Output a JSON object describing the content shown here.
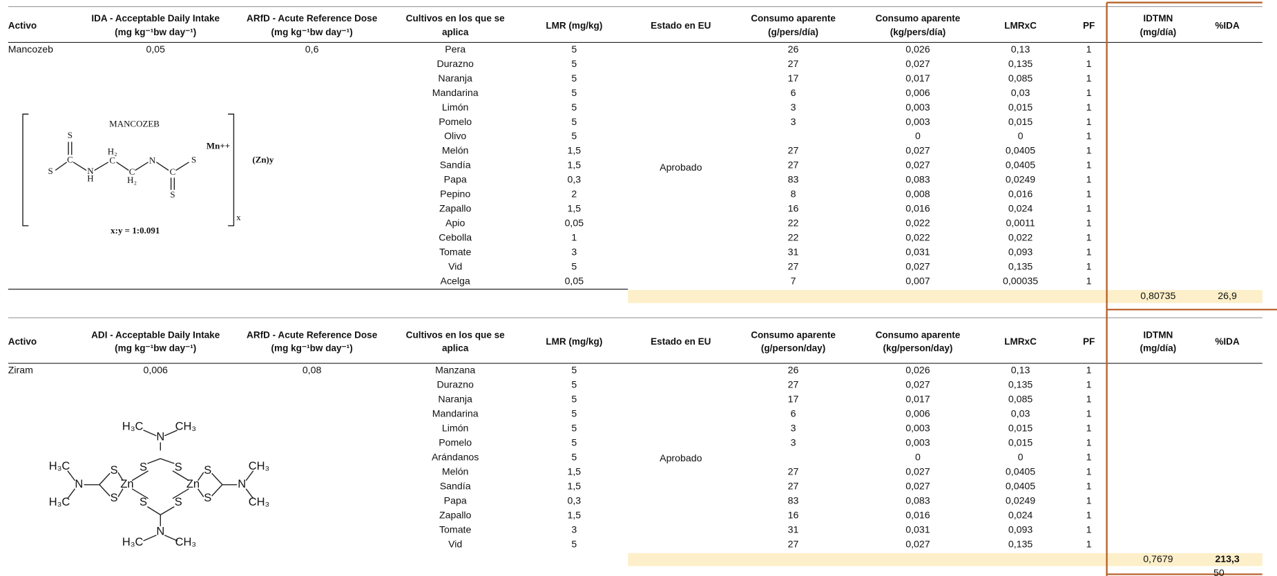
{
  "tables": [
    {
      "headers": [
        [
          "Activo"
        ],
        [
          "IDA - Acceptable Daily Intake",
          "(mg kg⁻¹bw day⁻¹)"
        ],
        [
          "ARfD - Acute Reference Dose",
          "(mg kg⁻¹bw day⁻¹)"
        ],
        [
          "Cultivos en los que se",
          "aplica"
        ],
        [
          "LMR (mg/kg)"
        ],
        [
          "Estado en EU"
        ],
        [
          "Consumo aparente",
          "(g/pers/día)"
        ],
        [
          "Consumo aparente",
          "(kg/pers/día)"
        ],
        [
          "LMRxC"
        ],
        [
          "PF"
        ],
        [
          "IDTMN",
          "(mg/día)"
        ],
        [
          "%IDA"
        ]
      ],
      "active": "Mancozeb",
      "ida": "0,05",
      "arfd": "0,6",
      "status": "Aprobado",
      "rows": [
        [
          "Pera",
          "5",
          "26",
          "0,026",
          "0,13",
          "1"
        ],
        [
          "Durazno",
          "5",
          "27",
          "0,027",
          "0,135",
          "1"
        ],
        [
          "Naranja",
          "5",
          "17",
          "0,017",
          "0,085",
          "1"
        ],
        [
          "Mandarina",
          "5",
          "6",
          "0,006",
          "0,03",
          "1"
        ],
        [
          "Limón",
          "5",
          "3",
          "0,003",
          "0,015",
          "1"
        ],
        [
          "Pomelo",
          "5",
          "3",
          "0,003",
          "0,015",
          "1"
        ],
        [
          "Olivo",
          "5",
          null,
          "0",
          "0",
          "1"
        ],
        [
          "Melón",
          "1,5",
          "27",
          "0,027",
          "0,0405",
          "1"
        ],
        [
          "Sandía",
          "1,5",
          "27",
          "0,027",
          "0,0405",
          "1"
        ],
        [
          "Papa",
          "0,3",
          "83",
          "0,083",
          "0,0249",
          "1"
        ],
        [
          "Pepino",
          "2",
          "8",
          "0,008",
          "0,016",
          "1"
        ],
        [
          "Zapallo",
          "1,5",
          "16",
          "0,016",
          "0,024",
          "1"
        ],
        [
          "Apio",
          "0,05",
          "22",
          "0,022",
          "0,0011",
          "1"
        ],
        [
          "Cebolla",
          "1",
          "22",
          "0,022",
          "0,022",
          "1"
        ],
        [
          "Tomate",
          "3",
          "31",
          "0,031",
          "0,093",
          "1"
        ],
        [
          "Vid",
          "5",
          "27",
          "0,027",
          "0,135",
          "1"
        ],
        [
          "Acelga",
          "0,05",
          "7",
          "0,007",
          "0,00035",
          "1"
        ]
      ],
      "total": {
        "idtmn": "0,80735",
        "pct_ida": "26,9",
        "pct_ida_bold": false
      },
      "structure": {
        "labels": [
          "MANCOZEB",
          "Mn++",
          "(Zn)y",
          "x:y = 1:0.091",
          "x",
          "S",
          "S",
          "C",
          "N",
          "H",
          "H₂",
          "C",
          "C",
          "H₂",
          "N",
          "C",
          "S",
          "S"
        ]
      }
    },
    {
      "headers": [
        [
          "Activo"
        ],
        [
          "ADI - Acceptable Daily Intake",
          "(mg kg⁻¹bw day⁻¹)"
        ],
        [
          "ARfD - Acute Reference Dose",
          "(mg kg⁻¹bw day⁻¹)"
        ],
        [
          "Cultivos en los que se",
          "aplica"
        ],
        [
          "LMR (mg/kg)"
        ],
        [
          "Estado en EU"
        ],
        [
          "Consumo aparente",
          "(g/person/day)"
        ],
        [
          "Consumo aparente",
          "(kg/person/day)"
        ],
        [
          "LMRxC"
        ],
        [
          "PF"
        ],
        [
          "IDTMN",
          "(mg/día)"
        ],
        [
          "%IDA"
        ]
      ],
      "active": "Ziram",
      "ida": "0,006",
      "arfd": "0,08",
      "status": "Aprobado",
      "rows": [
        [
          "Manzana",
          "5",
          "26",
          "0,026",
          "0,13",
          "1"
        ],
        [
          "Durazno",
          "5",
          "27",
          "0,027",
          "0,135",
          "1"
        ],
        [
          "Naranja",
          "5",
          "17",
          "0,017",
          "0,085",
          "1"
        ],
        [
          "Mandarina",
          "5",
          "6",
          "0,006",
          "0,03",
          "1"
        ],
        [
          "Limón",
          "5",
          "3",
          "0,003",
          "0,015",
          "1"
        ],
        [
          "Pomelo",
          "5",
          "3",
          "0,003",
          "0,015",
          "1"
        ],
        [
          "Arándanos",
          "5",
          null,
          "0",
          "0",
          "1"
        ],
        [
          "Melón",
          "1,5",
          "27",
          "0,027",
          "0,0405",
          "1"
        ],
        [
          "Sandía",
          "1,5",
          "27",
          "0,027",
          "0,0405",
          "1"
        ],
        [
          "Papa",
          "0,3",
          "83",
          "0,083",
          "0,0249",
          "1"
        ],
        [
          "Zapallo",
          "1,5",
          "16",
          "0,016",
          "0,024",
          "1"
        ],
        [
          "Tomate",
          "3",
          "31",
          "0,031",
          "0,093",
          "1"
        ],
        [
          "Vid",
          "5",
          "27",
          "0,027",
          "0,135",
          "1"
        ]
      ],
      "total": {
        "idtmn": "0,7679",
        "pct_ida": "213,3",
        "pct_ida_bold": true
      },
      "structure": {
        "labels": [
          "H₃C",
          "N",
          "CH₃",
          "S",
          "S",
          "H₃C",
          "N",
          "H₃C",
          "S",
          "S",
          "Zn",
          "Zn",
          "S",
          "S",
          "S",
          "S",
          "N",
          "CH₃",
          "CH₃",
          "N",
          "H₃C",
          "CH₃"
        ]
      }
    }
  ],
  "page_number": "50"
}
